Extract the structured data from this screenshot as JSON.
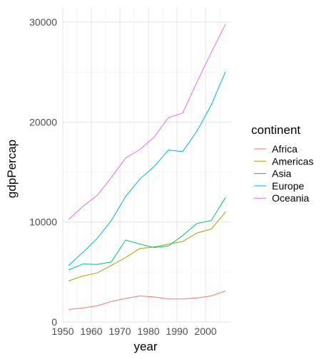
{
  "chart_data": {
    "type": "line",
    "xlabel": "year",
    "ylabel": "gdpPercap",
    "xlim": [
      1950,
      2009
    ],
    "ylim": [
      0,
      31500
    ],
    "xticks": [
      1950,
      1960,
      1970,
      1980,
      1990,
      2000
    ],
    "xtick_labels": [
      "1950",
      "1960",
      "1970",
      "1980",
      "1990",
      "2000"
    ],
    "yticks": [
      0,
      10000,
      20000,
      30000
    ],
    "ytick_labels": [
      "0",
      "10000",
      "20000",
      "30000"
    ],
    "grid": true,
    "legend": {
      "title": "continent",
      "position": "right"
    },
    "x": [
      1952,
      1957,
      1962,
      1967,
      1972,
      1977,
      1982,
      1987,
      1992,
      1997,
      2002,
      2007
    ],
    "series": [
      {
        "name": "Africa",
        "color": "#F8766D",
        "values": [
          1250,
          1400,
          1600,
          2050,
          2350,
          2600,
          2500,
          2300,
          2300,
          2400,
          2600,
          3100
        ]
      },
      {
        "name": "Americas",
        "color": "#A3A500",
        "values": [
          4100,
          4600,
          4900,
          5650,
          6450,
          7350,
          7500,
          7800,
          8050,
          8900,
          9300,
          11000
        ]
      },
      {
        "name": "Asia",
        "color": "#00BF7D",
        "values": [
          5200,
          5800,
          5750,
          6000,
          8200,
          7800,
          7450,
          7600,
          8650,
          9850,
          10150,
          12450
        ]
      },
      {
        "name": "Europe",
        "color": "#00B0F6",
        "values": [
          5650,
          6950,
          8350,
          10150,
          12550,
          14300,
          15550,
          17200,
          17050,
          19100,
          21700,
          25050
        ]
      },
      {
        "name": "Oceania",
        "color": "#E76BF3",
        "values": [
          10250,
          11550,
          12650,
          14450,
          16400,
          17250,
          18500,
          20450,
          20900,
          24000,
          26950,
          29800
        ]
      }
    ]
  }
}
